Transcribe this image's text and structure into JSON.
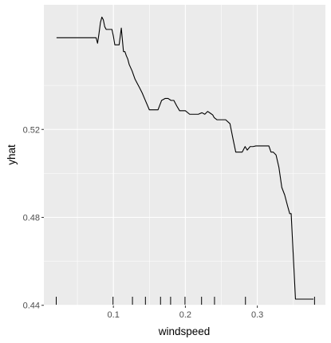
{
  "chart_data": {
    "type": "line",
    "title": "",
    "xlabel": "windspeed",
    "ylabel": "yhat",
    "xlim": [
      0.0034,
      0.3946
    ],
    "ylim": [
      0.4399,
      0.5767
    ],
    "x_ticks": [
      0.1,
      0.2,
      0.3
    ],
    "y_ticks": [
      0.44,
      0.48,
      0.52
    ],
    "x_tick_labels": [
      "0.1",
      "0.2",
      "0.3"
    ],
    "y_tick_labels": [
      "0.44",
      "0.48",
      "0.52"
    ],
    "grid": true,
    "legend": "none",
    "colors": {
      "panel": "#ebebeb",
      "grid": "#ffffff",
      "line": "#000000",
      "rug": "#000000",
      "tick_text": "#4d4d4d"
    },
    "series": [
      {
        "x": [
          0.021,
          0.036,
          0.051,
          0.066,
          0.074,
          0.076,
          0.078,
          0.08,
          0.082,
          0.084,
          0.086,
          0.088,
          0.09,
          0.091,
          0.093,
          0.095,
          0.098,
          0.1,
          0.102,
          0.105,
          0.108,
          0.111,
          0.114,
          0.116,
          0.118,
          0.12,
          0.122,
          0.126,
          0.13,
          0.134,
          0.136,
          0.14,
          0.144,
          0.15,
          0.156,
          0.162,
          0.167,
          0.172,
          0.176,
          0.18,
          0.184,
          0.188,
          0.192,
          0.196,
          0.2,
          0.206,
          0.212,
          0.218,
          0.223,
          0.227,
          0.231,
          0.235,
          0.238,
          0.24,
          0.244,
          0.25,
          0.256,
          0.262,
          0.266,
          0.27,
          0.274,
          0.279,
          0.283,
          0.286,
          0.29,
          0.294,
          0.298,
          0.304,
          0.31,
          0.316,
          0.319,
          0.322,
          0.326,
          0.33,
          0.334,
          0.338,
          0.342,
          0.345,
          0.347,
          0.353,
          0.378
        ],
        "y": [
          0.5617,
          0.5617,
          0.5617,
          0.5617,
          0.5617,
          0.5617,
          0.5592,
          0.5636,
          0.5686,
          0.5711,
          0.5699,
          0.5667,
          0.5655,
          0.5655,
          0.5655,
          0.5655,
          0.5655,
          0.5624,
          0.5585,
          0.5585,
          0.5585,
          0.5661,
          0.5554,
          0.5554,
          0.5535,
          0.552,
          0.5495,
          0.5466,
          0.5429,
          0.5404,
          0.5392,
          0.5366,
          0.5335,
          0.5289,
          0.5289,
          0.5289,
          0.5332,
          0.5341,
          0.5341,
          0.5332,
          0.5332,
          0.5307,
          0.5285,
          0.5285,
          0.5285,
          0.5269,
          0.5269,
          0.5269,
          0.5276,
          0.5269,
          0.5282,
          0.5273,
          0.5266,
          0.5254,
          0.5244,
          0.5244,
          0.5244,
          0.5226,
          0.516,
          0.5097,
          0.5097,
          0.5097,
          0.5122,
          0.5106,
          0.5122,
          0.5122,
          0.5125,
          0.5125,
          0.5125,
          0.5125,
          0.5097,
          0.5097,
          0.5084,
          0.5027,
          0.4936,
          0.4902,
          0.4852,
          0.4817,
          0.4817,
          0.4428,
          0.4428
        ]
      }
    ],
    "rug_x": [
      0.0206,
      0.0995,
      0.1265,
      0.1445,
      0.1655,
      0.1795,
      0.1995,
      0.2225,
      0.2405,
      0.2835,
      0.3795
    ]
  }
}
